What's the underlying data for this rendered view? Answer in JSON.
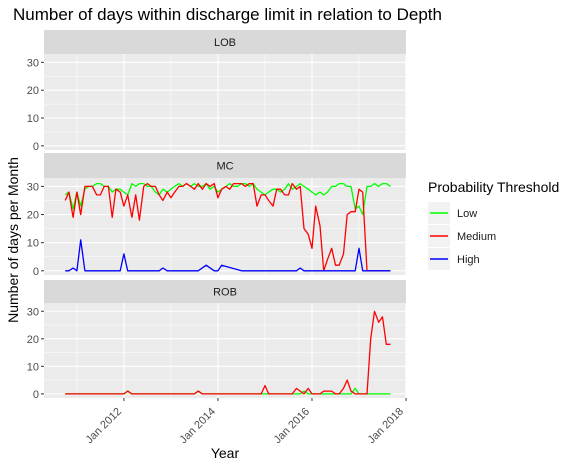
{
  "chart_data": {
    "type": "line",
    "title": "Number of days within discharge limit in relation to Depth",
    "xlabel": "Year",
    "ylabel": "Number of days per Month",
    "x_ticks": [
      "Jan 2012",
      "Jan 2014",
      "Jan 2016",
      "Jan 2018"
    ],
    "x_tick_values": [
      2012,
      2014,
      2016,
      2018
    ],
    "xlim": [
      2010.3,
      2018.0
    ],
    "ylim": [
      -1.5,
      33
    ],
    "y_ticks": [
      0,
      10,
      20,
      30
    ],
    "grid": true,
    "legend": {
      "title": "Probability Threshold",
      "position": "right",
      "entries": [
        {
          "name": "Low",
          "color": "#00FF00"
        },
        {
          "name": "Medium",
          "color": "#FF0000"
        },
        {
          "name": "High",
          "color": "#0000FF"
        }
      ]
    },
    "panels": [
      {
        "label": "LOB",
        "series": []
      },
      {
        "label": "MC",
        "series": [
          {
            "name": "Low",
            "color": "#00FF00",
            "x": [
              2010.75,
              2010.83,
              2010.92,
              2011.0,
              2011.08,
              2011.17,
              2011.25,
              2011.33,
              2011.42,
              2011.5,
              2011.58,
              2011.67,
              2011.75,
              2011.83,
              2011.92,
              2012.0,
              2012.08,
              2012.17,
              2012.25,
              2012.33,
              2012.42,
              2012.5,
              2012.58,
              2012.67,
              2012.75,
              2012.83,
              2012.92,
              2013.0,
              2013.08,
              2013.17,
              2013.25,
              2013.33,
              2013.42,
              2013.5,
              2013.58,
              2013.67,
              2013.75,
              2013.83,
              2013.92,
              2014.0,
              2014.08,
              2014.17,
              2014.25,
              2014.33,
              2014.42,
              2014.5,
              2014.58,
              2014.67,
              2014.75,
              2014.83,
              2014.92,
              2015.0,
              2015.08,
              2015.17,
              2015.25,
              2015.33,
              2015.42,
              2015.5,
              2015.58,
              2015.67,
              2015.75,
              2015.83,
              2015.92,
              2016.0,
              2016.08,
              2016.17,
              2016.25,
              2016.33,
              2016.42,
              2016.5,
              2016.58,
              2016.67,
              2016.75,
              2016.83,
              2016.92,
              2017.0,
              2017.08,
              2017.17,
              2017.25,
              2017.33,
              2017.42,
              2017.5,
              2017.58,
              2017.67
            ],
            "values": [
              27,
              28,
              22,
              28,
              23,
              29,
              30,
              30,
              31,
              31,
              30,
              30,
              28,
              29,
              29,
              28,
              27,
              31,
              30,
              31,
              31,
              30,
              30,
              28,
              27,
              29,
              28,
              29,
              30,
              31,
              30,
              31,
              30,
              31,
              30,
              30,
              31,
              29,
              30,
              28,
              29,
              30,
              31,
              30,
              30,
              31,
              31,
              30,
              31,
              29,
              28,
              27,
              28,
              29,
              29,
              28,
              29,
              31,
              29,
              30,
              31,
              30,
              29,
              28,
              27,
              28,
              27,
              28,
              30,
              30,
              31,
              31,
              30,
              30,
              22,
              23,
              20,
              30,
              30,
              31,
              30,
              31,
              31,
              30
            ]
          },
          {
            "name": "Medium",
            "color": "#FF0000",
            "x": [
              2010.75,
              2010.83,
              2010.92,
              2011.0,
              2011.08,
              2011.17,
              2011.25,
              2011.33,
              2011.42,
              2011.5,
              2011.58,
              2011.67,
              2011.75,
              2011.83,
              2011.92,
              2012.0,
              2012.08,
              2012.17,
              2012.25,
              2012.33,
              2012.42,
              2012.5,
              2012.58,
              2012.67,
              2012.75,
              2012.83,
              2012.92,
              2013.0,
              2013.08,
              2013.17,
              2013.25,
              2013.33,
              2013.42,
              2013.5,
              2013.58,
              2013.67,
              2013.75,
              2013.83,
              2013.92,
              2014.0,
              2014.08,
              2014.17,
              2014.25,
              2014.33,
              2014.42,
              2014.5,
              2014.58,
              2014.67,
              2014.75,
              2014.83,
              2014.92,
              2015.0,
              2015.08,
              2015.17,
              2015.25,
              2015.33,
              2015.42,
              2015.5,
              2015.58,
              2015.67,
              2015.75,
              2015.83,
              2015.92,
              2016.0,
              2016.08,
              2016.17,
              2016.25,
              2016.33,
              2016.42,
              2016.5,
              2016.58,
              2016.67,
              2016.75,
              2016.83,
              2016.92,
              2017.0,
              2017.08,
              2017.17,
              2017.25,
              2017.33,
              2017.42,
              2017.5,
              2017.58,
              2017.67
            ],
            "values": [
              25,
              28,
              19,
              28,
              20,
              30,
              30,
              30,
              27,
              27,
              30,
              30,
              19,
              29,
              28,
              23,
              27,
              19,
              27,
              18,
              30,
              31,
              30,
              30,
              27,
              25,
              28,
              26,
              28,
              30,
              30,
              31,
              30,
              29,
              31,
              29,
              31,
              30,
              31,
              26,
              29,
              30,
              29,
              31,
              31,
              31,
              30,
              31,
              31,
              23,
              27,
              27,
              25,
              23,
              29,
              29,
              27,
              27,
              31,
              29,
              30,
              15,
              13,
              8,
              23,
              16,
              0,
              4,
              8,
              2,
              2,
              6,
              20,
              21,
              21,
              29,
              28,
              0,
              0,
              0,
              0,
              0,
              0,
              0
            ]
          },
          {
            "name": "High",
            "color": "#0000FF",
            "x": [
              2010.75,
              2010.83,
              2010.92,
              2011.0,
              2011.08,
              2011.17,
              2011.33,
              2011.5,
              2011.67,
              2011.83,
              2011.92,
              2012.0,
              2012.08,
              2012.17,
              2012.5,
              2012.75,
              2012.83,
              2012.92,
              2013.17,
              2013.42,
              2013.5,
              2013.58,
              2013.75,
              2013.92,
              2014.0,
              2014.08,
              2014.5,
              2014.75,
              2015.0,
              2015.25,
              2015.5,
              2015.67,
              2015.75,
              2015.83,
              2016.0,
              2016.25,
              2016.5,
              2016.75,
              2016.92,
              2017.0,
              2017.08,
              2017.17,
              2017.5,
              2017.67
            ],
            "values": [
              0,
              0,
              1,
              0,
              11,
              0,
              0,
              0,
              0,
              0,
              0,
              6,
              0,
              0,
              0,
              0,
              1,
              0,
              0,
              0,
              0,
              0,
              2,
              0,
              0,
              2,
              0,
              0,
              0,
              0,
              0,
              0,
              1,
              0,
              0,
              0,
              0,
              0,
              0,
              8,
              0,
              0,
              0,
              0
            ]
          }
        ]
      },
      {
        "label": "ROB",
        "series": [
          {
            "name": "Low",
            "color": "#00FF00",
            "x": [
              2010.75,
              2011.5,
              2012.0,
              2012.08,
              2012.17,
              2012.75,
              2013.5,
              2013.58,
              2013.67,
              2014.5,
              2015.0,
              2015.5,
              2015.75,
              2015.83,
              2015.92,
              2016.5,
              2016.75,
              2016.83,
              2016.92,
              2017.0,
              2017.17,
              2017.67
            ],
            "values": [
              0,
              0,
              0,
              1,
              0,
              0,
              0,
              1,
              0,
              0,
              0,
              0,
              0,
              1,
              0,
              0,
              0,
              0,
              2,
              0,
              0,
              0
            ]
          },
          {
            "name": "Medium",
            "color": "#FF0000",
            "x": [
              2010.75,
              2011.5,
              2012.0,
              2012.08,
              2012.17,
              2012.75,
              2013.5,
              2013.58,
              2013.67,
              2014.5,
              2014.92,
              2015.0,
              2015.08,
              2015.5,
              2015.58,
              2015.67,
              2015.75,
              2015.83,
              2015.92,
              2016.0,
              2016.08,
              2016.17,
              2016.25,
              2016.33,
              2016.42,
              2016.5,
              2016.58,
              2016.67,
              2016.75,
              2016.83,
              2016.92,
              2017.0,
              2017.08,
              2017.17,
              2017.25,
              2017.33,
              2017.42,
              2017.5,
              2017.58,
              2017.67
            ],
            "values": [
              0,
              0,
              0,
              1,
              0,
              0,
              0,
              1,
              0,
              0,
              0,
              3,
              0,
              0,
              0,
              2,
              1,
              0,
              2,
              0,
              0,
              0,
              1,
              1,
              1,
              0,
              0,
              2,
              5,
              1,
              0,
              0,
              0,
              0,
              20,
              30,
              26,
              28,
              18,
              18
            ]
          }
        ]
      }
    ]
  }
}
